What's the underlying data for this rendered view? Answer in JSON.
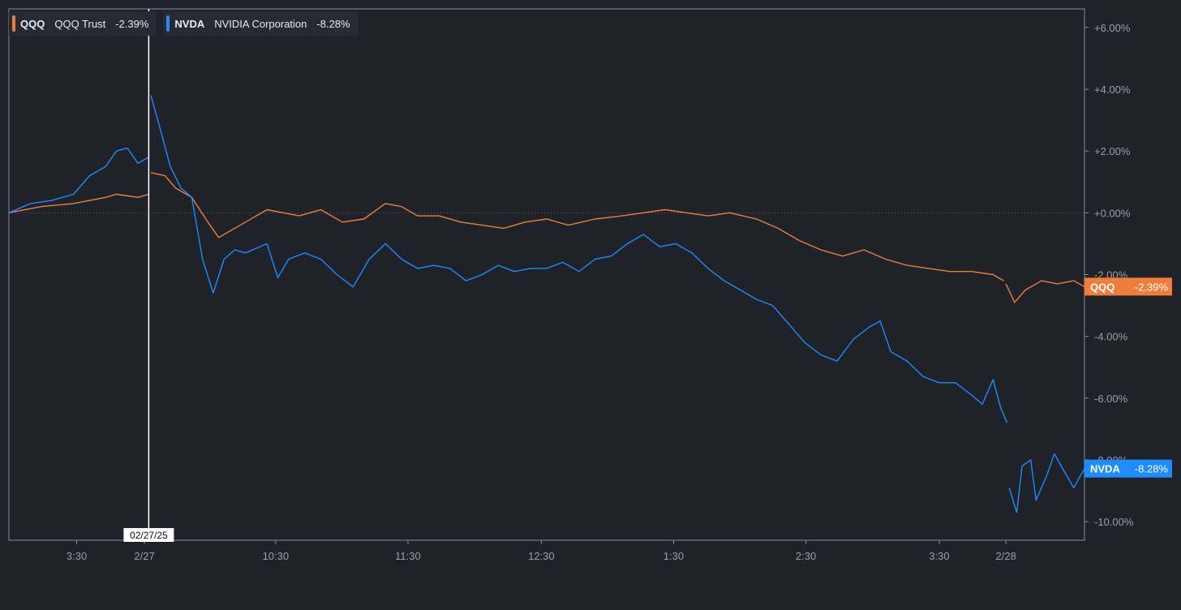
{
  "legend": [
    {
      "symbol": "QQQ",
      "name": "QQQ Trust",
      "change": "-2.39%",
      "color": "#ef7d3c"
    },
    {
      "symbol": "NVDA",
      "name": "NVIDIA Corporation",
      "change": "-8.28%",
      "color": "#1e8bff"
    }
  ],
  "crosshair": {
    "date_label": "02/27/25",
    "x": 1.3
  },
  "end_labels": [
    {
      "text": "QQQ",
      "value": "-2.39%",
      "y": -2.39,
      "color": "#ef7d3c"
    },
    {
      "text": "NVDA",
      "value": "-8.28%",
      "y": -8.28,
      "color": "#1e8bff"
    }
  ],
  "chart_data": {
    "type": "line",
    "ylim": [
      -10.6,
      6.6
    ],
    "xlim": [
      0,
      10
    ],
    "grid": false,
    "zero_line": true,
    "legend_placement": "top-left",
    "y_ticks": [
      {
        "value": 6,
        "label": "+6.00%"
      },
      {
        "value": 4,
        "label": "+4.00%"
      },
      {
        "value": 2,
        "label": "+2.00%"
      },
      {
        "value": 0,
        "label": "+0.00%"
      },
      {
        "value": -2,
        "label": "-2.00%"
      },
      {
        "value": -4,
        "label": "-4.00%"
      },
      {
        "value": -6,
        "label": "-6.00%"
      },
      {
        "value": -8,
        "label": "-8.00%"
      },
      {
        "value": -10,
        "label": "-10.00%"
      }
    ],
    "x_ticks": [
      {
        "value": 0.63,
        "label": "3:30"
      },
      {
        "value": 1.26,
        "label": "2/27"
      },
      {
        "value": 2.48,
        "label": "10:30"
      },
      {
        "value": 3.71,
        "label": "11:30"
      },
      {
        "value": 4.95,
        "label": "12:30"
      },
      {
        "value": 6.18,
        "label": "1:30"
      },
      {
        "value": 7.41,
        "label": "2:30"
      },
      {
        "value": 8.65,
        "label": "3:30"
      },
      {
        "value": 9.27,
        "label": "2/28"
      }
    ],
    "series": [
      {
        "name": "QQQ",
        "color": "#ef7d3c",
        "segments": [
          [
            [
              0,
              0
            ],
            [
              0.3,
              0.2
            ],
            [
              0.6,
              0.3
            ],
            [
              0.9,
              0.5
            ],
            [
              1.0,
              0.6
            ],
            [
              1.2,
              0.5
            ],
            [
              1.3,
              0.6
            ]
          ],
          [
            [
              1.32,
              1.3
            ],
            [
              1.45,
              1.2
            ],
            [
              1.55,
              0.8
            ],
            [
              1.7,
              0.5
            ],
            [
              1.85,
              -0.3
            ],
            [
              1.95,
              -0.8
            ],
            [
              2.05,
              -0.6
            ],
            [
              2.2,
              -0.3
            ],
            [
              2.4,
              0.1
            ],
            [
              2.55,
              0.0
            ],
            [
              2.7,
              -0.1
            ],
            [
              2.9,
              0.1
            ],
            [
              3.1,
              -0.3
            ],
            [
              3.3,
              -0.2
            ],
            [
              3.5,
              0.3
            ],
            [
              3.65,
              0.2
            ],
            [
              3.8,
              -0.1
            ],
            [
              4.0,
              -0.1
            ],
            [
              4.2,
              -0.3
            ],
            [
              4.4,
              -0.4
            ],
            [
              4.6,
              -0.5
            ],
            [
              4.8,
              -0.3
            ],
            [
              5.0,
              -0.2
            ],
            [
              5.2,
              -0.4
            ],
            [
              5.45,
              -0.2
            ],
            [
              5.7,
              -0.1
            ],
            [
              5.9,
              0.0
            ],
            [
              6.1,
              0.1
            ],
            [
              6.3,
              0.0
            ],
            [
              6.5,
              -0.1
            ],
            [
              6.7,
              0.0
            ],
            [
              6.95,
              -0.2
            ],
            [
              7.15,
              -0.5
            ],
            [
              7.35,
              -0.9
            ],
            [
              7.55,
              -1.2
            ],
            [
              7.75,
              -1.4
            ],
            [
              7.95,
              -1.2
            ],
            [
              8.15,
              -1.5
            ],
            [
              8.35,
              -1.7
            ],
            [
              8.55,
              -1.8
            ],
            [
              8.75,
              -1.9
            ],
            [
              8.95,
              -1.9
            ],
            [
              9.15,
              -2.0
            ],
            [
              9.25,
              -2.2
            ]
          ],
          [
            [
              9.27,
              -2.3
            ],
            [
              9.35,
              -2.9
            ],
            [
              9.45,
              -2.5
            ],
            [
              9.6,
              -2.2
            ],
            [
              9.75,
              -2.3
            ],
            [
              9.9,
              -2.2
            ],
            [
              10.0,
              -2.39
            ]
          ]
        ]
      },
      {
        "name": "NVDA",
        "color": "#1e8bff",
        "segments": [
          [
            [
              0,
              0
            ],
            [
              0.2,
              0.3
            ],
            [
              0.4,
              0.4
            ],
            [
              0.6,
              0.6
            ],
            [
              0.75,
              1.2
            ],
            [
              0.9,
              1.5
            ],
            [
              1.0,
              2.0
            ],
            [
              1.1,
              2.1
            ],
            [
              1.2,
              1.6
            ],
            [
              1.3,
              1.8
            ]
          ],
          [
            [
              1.32,
              3.8
            ],
            [
              1.4,
              2.8
            ],
            [
              1.5,
              1.5
            ],
            [
              1.6,
              0.8
            ],
            [
              1.7,
              0.5
            ],
            [
              1.8,
              -1.5
            ],
            [
              1.9,
              -2.6
            ],
            [
              2.0,
              -1.5
            ],
            [
              2.1,
              -1.2
            ],
            [
              2.2,
              -1.3
            ],
            [
              2.4,
              -1.0
            ],
            [
              2.5,
              -2.1
            ],
            [
              2.6,
              -1.5
            ],
            [
              2.75,
              -1.3
            ],
            [
              2.9,
              -1.5
            ],
            [
              3.05,
              -2.0
            ],
            [
              3.2,
              -2.4
            ],
            [
              3.35,
              -1.5
            ],
            [
              3.5,
              -1.0
            ],
            [
              3.65,
              -1.5
            ],
            [
              3.8,
              -1.8
            ],
            [
              3.95,
              -1.7
            ],
            [
              4.1,
              -1.8
            ],
            [
              4.25,
              -2.2
            ],
            [
              4.4,
              -2.0
            ],
            [
              4.55,
              -1.7
            ],
            [
              4.7,
              -1.9
            ],
            [
              4.85,
              -1.8
            ],
            [
              5.0,
              -1.8
            ],
            [
              5.15,
              -1.6
            ],
            [
              5.3,
              -1.9
            ],
            [
              5.45,
              -1.5
            ],
            [
              5.6,
              -1.4
            ],
            [
              5.75,
              -1.0
            ],
            [
              5.9,
              -0.7
            ],
            [
              6.05,
              -1.1
            ],
            [
              6.2,
              -1.0
            ],
            [
              6.35,
              -1.3
            ],
            [
              6.5,
              -1.8
            ],
            [
              6.65,
              -2.2
            ],
            [
              6.8,
              -2.5
            ],
            [
              6.95,
              -2.8
            ],
            [
              7.1,
              -3.0
            ],
            [
              7.25,
              -3.6
            ],
            [
              7.4,
              -4.2
            ],
            [
              7.55,
              -4.6
            ],
            [
              7.7,
              -4.8
            ],
            [
              7.85,
              -4.1
            ],
            [
              8.0,
              -3.7
            ],
            [
              8.1,
              -3.5
            ],
            [
              8.2,
              -4.5
            ],
            [
              8.35,
              -4.8
            ],
            [
              8.5,
              -5.3
            ],
            [
              8.65,
              -5.5
            ],
            [
              8.8,
              -5.5
            ],
            [
              8.95,
              -5.9
            ],
            [
              9.05,
              -6.2
            ],
            [
              9.15,
              -5.4
            ],
            [
              9.22,
              -6.3
            ],
            [
              9.28,
              -6.8
            ]
          ],
          [
            [
              9.3,
              -8.9
            ],
            [
              9.37,
              -9.7
            ],
            [
              9.42,
              -8.2
            ],
            [
              9.5,
              -8.0
            ],
            [
              9.55,
              -9.3
            ],
            [
              9.65,
              -8.5
            ],
            [
              9.72,
              -7.8
            ],
            [
              9.8,
              -8.3
            ],
            [
              9.9,
              -8.9
            ],
            [
              10.0,
              -8.28
            ]
          ]
        ]
      }
    ]
  }
}
